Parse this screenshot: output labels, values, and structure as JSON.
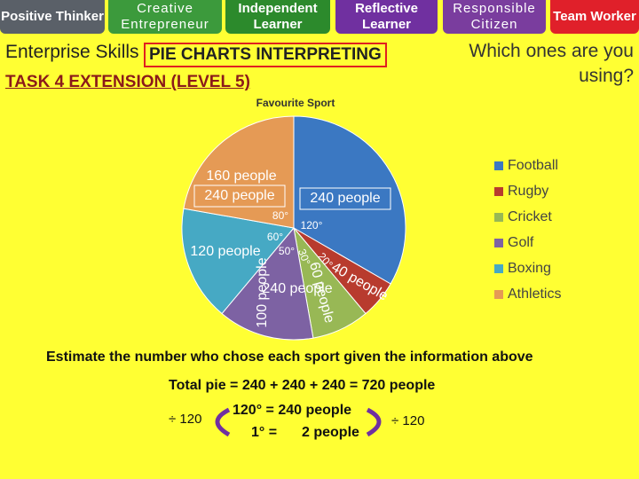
{
  "header": {
    "skills": [
      "Positive Thinker",
      "Creative Entrepreneur",
      "Independent Learner",
      "Reflective Learner",
      "Responsible Citizen",
      "Team Worker"
    ],
    "subtitle": "Enterprise Skills",
    "title": "PIE CHARTS INTERPRETING",
    "task": "TASK 4 EXTENSION (LEVEL 5)",
    "question": "Which ones are you using?"
  },
  "chart_data": {
    "type": "pie",
    "title": "Favourite Sport",
    "categories": [
      "Football",
      "Rugby",
      "Cricket",
      "Golf",
      "Boxing",
      "Athletics"
    ],
    "values": [
      120,
      20,
      30,
      50,
      60,
      80
    ],
    "value_labels": [
      "120°",
      "20°",
      "30°",
      "50°",
      "60°",
      "80°"
    ],
    "colors": [
      "#3b78c2",
      "#b83b2e",
      "#98b855",
      "#7d62a3",
      "#46a9c4",
      "#e59a55"
    ],
    "people_labels": [
      "240 people",
      "40 people",
      "60 people",
      "100 people",
      "120 people",
      "160 people"
    ],
    "overlay_labels": [
      "240 people",
      "240 people"
    ],
    "legend": "right"
  },
  "footer": {
    "prompt": "Estimate the number who chose each sport given the information above",
    "total": "Total pie = 240 + 240 + 240 = 720 people",
    "ratio": "120° = 240 people",
    "unit_deg": "1° =",
    "unit_val": "2 people",
    "divide_left": "÷ 120",
    "divide_right": "÷ 120"
  }
}
